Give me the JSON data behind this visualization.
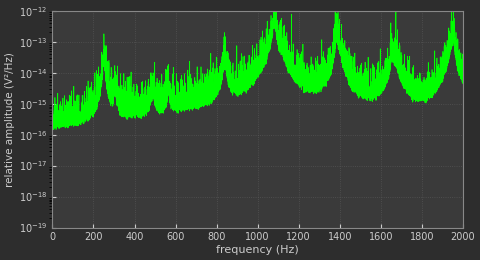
{
  "background_color": "#2d2d2d",
  "axes_bg_color": "#3a3a3a",
  "line_color": "#00ff00",
  "grid_color": "#666666",
  "text_color": "#cccccc",
  "tick_color": "#cccccc",
  "xlabel": "frequency (Hz)",
  "ylabel": "relative amplitude (V²/Hz)",
  "xmin": 0,
  "xmax": 2000,
  "ymin": 1e-19,
  "ymax": 1e-12,
  "figwidth": 4.8,
  "figheight": 2.6,
  "dpi": 100
}
